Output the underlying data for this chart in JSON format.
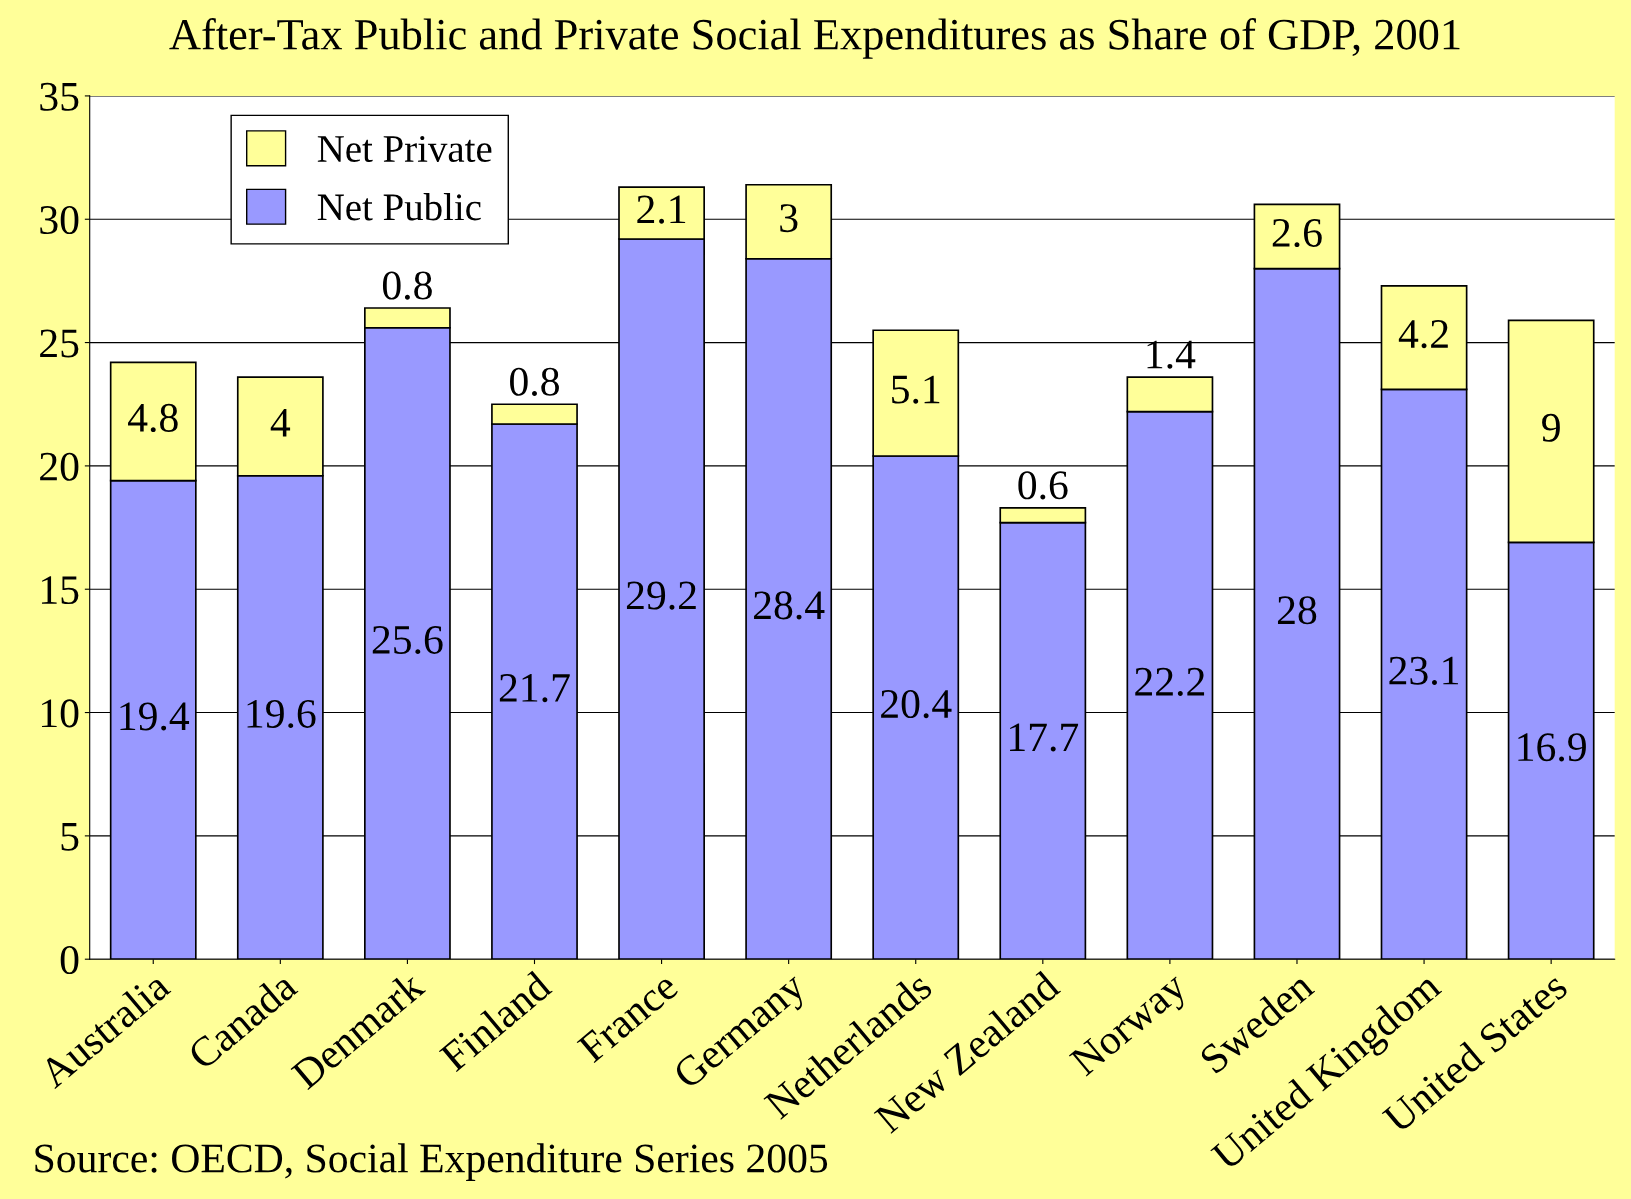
{
  "chart_data": {
    "type": "bar",
    "title": "After-Tax Public and Private Social Expenditures as Share of GDP, 2001",
    "categories": [
      "Australia",
      "Canada",
      "Denmark",
      "Finland",
      "France",
      "Germany",
      "Netherlands",
      "New Zealand",
      "Norway",
      "Sweden",
      "United Kingdom",
      "United States"
    ],
    "series": [
      {
        "name": "Net Public",
        "color": "#9999ff",
        "values": [
          19.4,
          19.6,
          25.6,
          21.7,
          29.2,
          28.4,
          20.4,
          17.7,
          22.2,
          28,
          23.1,
          16.9
        ]
      },
      {
        "name": "Net Private",
        "color": "#ffff99",
        "values": [
          4.8,
          4,
          0.8,
          0.8,
          2.1,
          3,
          5.1,
          0.6,
          1.4,
          2.6,
          4.2,
          9
        ]
      }
    ],
    "stacked": true,
    "data_labels": true,
    "ylim": [
      0,
      35
    ],
    "yticks": [
      0,
      5,
      10,
      15,
      20,
      25,
      30,
      35
    ],
    "grid": "y",
    "legend": "top left",
    "annotations": [
      "Source: OECD, Social Expenditure Series 2005"
    ]
  }
}
